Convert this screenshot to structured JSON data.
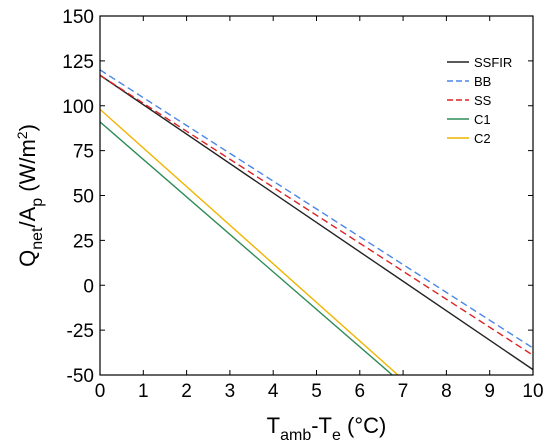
{
  "chart_data": {
    "type": "line",
    "xlabel": {
      "main": "T",
      "sub1": "amb",
      "mid": "-T",
      "sub2": "e",
      "unit": " (°C)"
    },
    "ylabel": {
      "main": "Q",
      "sub1": "net",
      "mid": "/A",
      "sub2": "p",
      "unit": " (W/m",
      "sup": "2",
      "close": ")"
    },
    "xlim": [
      0,
      10
    ],
    "ylim": [
      -50,
      150
    ],
    "xticks": [
      0,
      1,
      2,
      3,
      4,
      5,
      6,
      7,
      8,
      9,
      10
    ],
    "yticks": [
      -50,
      -25,
      0,
      25,
      50,
      75,
      100,
      125,
      150
    ],
    "grid": false,
    "legend_position": "top-right",
    "series": [
      {
        "name": "SSFIR",
        "color": "#222222",
        "dash": "solid",
        "x": [
          0,
          10
        ],
        "y": [
          117,
          -47
        ]
      },
      {
        "name": "BB",
        "color": "#4a86e8",
        "dash": "dashed",
        "x": [
          0,
          10
        ],
        "y": [
          120,
          -35
        ]
      },
      {
        "name": "SS",
        "color": "#dd2222",
        "dash": "dashed",
        "x": [
          0,
          10
        ],
        "y": [
          117,
          -39
        ]
      },
      {
        "name": "C1",
        "color": "#2e8b57",
        "dash": "solid",
        "x": [
          0,
          6.75
        ],
        "y": [
          91,
          -50
        ]
      },
      {
        "name": "C2",
        "color": "#f0b400",
        "dash": "solid",
        "x": [
          0,
          6.88
        ],
        "y": [
          98,
          -50
        ]
      }
    ]
  }
}
